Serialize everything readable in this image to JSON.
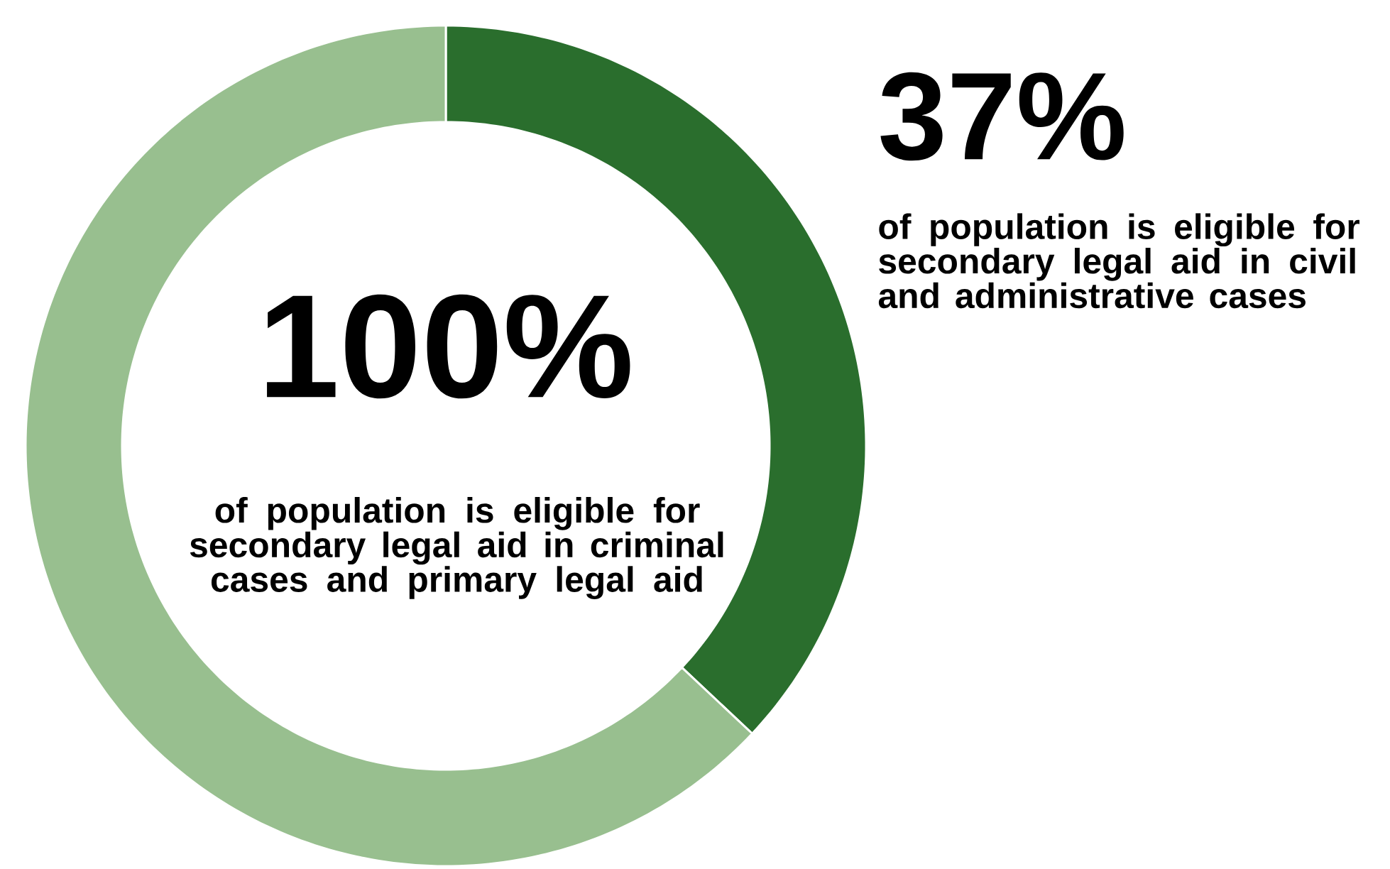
{
  "chart_data": {
    "type": "donut",
    "categories": [
      null,
      null
    ],
    "values": [
      37,
      63
    ],
    "colors": [
      "#2a6e2d",
      "#98bf8f"
    ],
    "annotations": [
      "100%",
      "of population is eligible for secondary legal aid in criminal cases and primary legal aid",
      "37%",
      "of population is eligible for secondary legal aid in civil and administrative cases"
    ]
  }
}
